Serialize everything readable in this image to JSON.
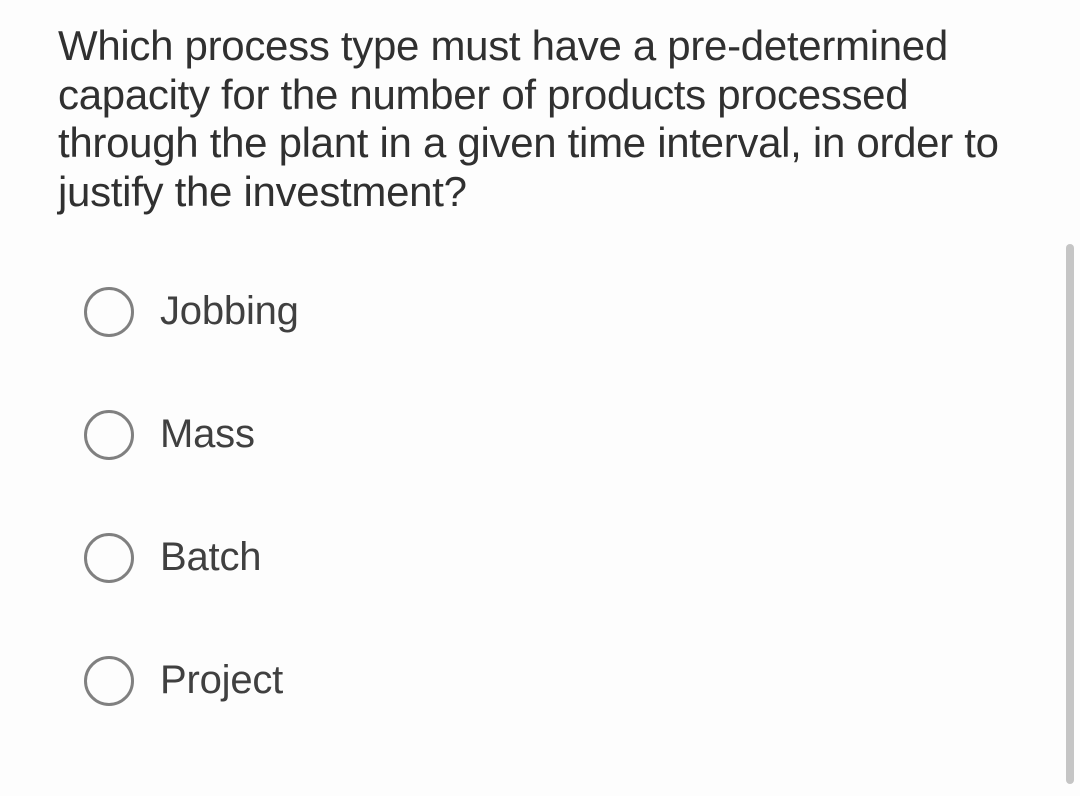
{
  "question": {
    "text": "Which process type must have a pre-determined capacity for the number of products processed through the plant in a given time interval, in order to justify the investment?"
  },
  "options": [
    {
      "label": "Jobbing"
    },
    {
      "label": "Mass"
    },
    {
      "label": "Batch"
    },
    {
      "label": "Project"
    }
  ],
  "colors": {
    "background": "#fdfdfd",
    "text": "#303030",
    "option_text": "#404040",
    "radio_border": "#808080",
    "scrollbar": "#c5c5c5"
  },
  "typography": {
    "question_fontsize": 42,
    "option_fontsize": 40
  }
}
